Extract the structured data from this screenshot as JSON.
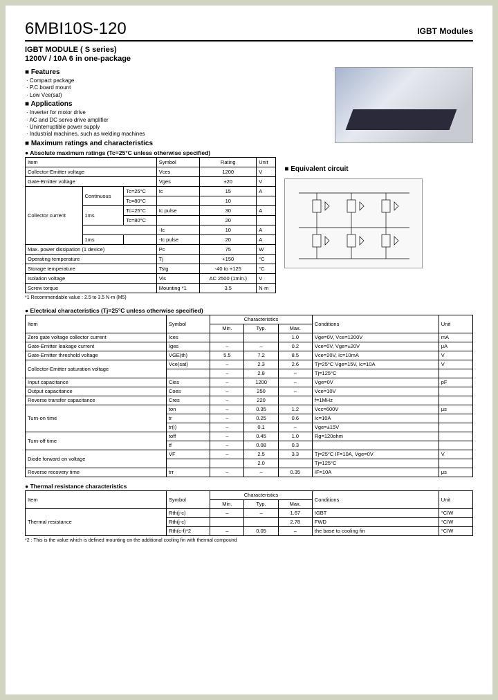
{
  "header": {
    "part_number": "6MBI10S-120",
    "module_type": "IGBT Modules"
  },
  "subtitle": {
    "line1": "IGBT MODULE  ( S series)",
    "line2": "1200V / 10A  6 in one-package"
  },
  "features": {
    "heading": "Features",
    "items": [
      "Compact  package",
      "P.C.board mount",
      "Low Vce(sat)"
    ]
  },
  "applications": {
    "heading": "Applications",
    "items": [
      "Inverter for  motor drive",
      "AC and DC servo drive amplifier",
      "Uninterruptible power supply",
      "Industrial machines, such as welding machines"
    ]
  },
  "max_ratings": {
    "heading": "Maximum ratings and characteristics",
    "sub": "Absolute maximum ratings (Tc=25°C unless otherwise specified)",
    "cols": [
      "Item",
      "Symbol",
      "Rating",
      "Unit"
    ],
    "rows": [
      {
        "item": "Collector-Emitter voltage",
        "symbol": "Vces",
        "rating": "1200",
        "unit": "V"
      },
      {
        "item": "Gate-Emitter voltage",
        "symbol": "Vges",
        "rating": "±20",
        "unit": "V"
      },
      {
        "item": "Collector current",
        "sub1": "Continuous",
        "sub2": "Tc=25°C",
        "symbol": "Ic",
        "rating": "15",
        "unit": "A"
      },
      {
        "item": "",
        "sub1": "",
        "sub2": "Tc=80°C",
        "symbol": "",
        "rating": "10",
        "unit": ""
      },
      {
        "item": "",
        "sub1": "1ms",
        "sub2": "Tc=25°C",
        "symbol": "Ic pulse",
        "rating": "30",
        "unit": "A"
      },
      {
        "item": "",
        "sub1": "",
        "sub2": "Tc=80°C",
        "symbol": "",
        "rating": "20",
        "unit": ""
      },
      {
        "item": "",
        "sub1": "",
        "sub2": "",
        "symbol": "-Ic",
        "rating": "10",
        "unit": "A"
      },
      {
        "item": "",
        "sub1": "1ms",
        "sub2": "",
        "symbol": "-Ic pulse",
        "rating": "20",
        "unit": "A"
      },
      {
        "item": "Max. power dissipation (1 device)",
        "symbol": "Pc",
        "rating": "75",
        "unit": "W"
      },
      {
        "item": "Operating temperature",
        "symbol": "Tj",
        "rating": "+150",
        "unit": "°C"
      },
      {
        "item": "Storage temperature",
        "symbol": "Tstg",
        "rating": "-40 to +125",
        "unit": "°C"
      },
      {
        "item": "Isolation voltage",
        "symbol": "Vis",
        "rating": "AC 2500 (1min.)",
        "unit": "V"
      },
      {
        "item": "Screw torque",
        "symbol": "Mounting *1",
        "rating": "3.5",
        "unit": "N·m"
      }
    ],
    "footnote": "*1  Recommendable value : 2.5 to 3.5 N·m (M5)"
  },
  "equiv": {
    "heading": "Equivalent circuit"
  },
  "elec": {
    "heading": "Electrical characteristics (Tj=25°C unless otherwise specified)",
    "cols": [
      "Item",
      "Symbol",
      "Min.",
      "Typ.",
      "Max.",
      "Conditions",
      "Unit"
    ],
    "char_label": "Characteristics",
    "rows": [
      {
        "i": "Zero gate voltage collector current",
        "s": "Ices",
        "min": "",
        "typ": "",
        "max": "1.0",
        "c": "Vge=0V, Vce=1200V",
        "u": "mA"
      },
      {
        "i": "Gate-Emitter leakage current",
        "s": "Iges",
        "min": "–",
        "typ": "–",
        "max": "0.2",
        "c": "Vce=0V, Vge=±20V",
        "u": "μA"
      },
      {
        "i": "Gate-Emitter threshold voltage",
        "s": "VGE(th)",
        "min": "5.5",
        "typ": "7.2",
        "max": "8.5",
        "c": "Vce=20V, Ic=10mA",
        "u": "V"
      },
      {
        "i": "Collector-Emitter saturation voltage",
        "s": "Vce(sat)",
        "min": "–",
        "typ": "2.3",
        "max": "2.6",
        "c": "Tj=25°C    Vge=15V, Ic=10A",
        "u": "V"
      },
      {
        "i": "",
        "s": "",
        "min": "–",
        "typ": "2.8",
        "max": "–",
        "c": "Tj=125°C",
        "u": ""
      },
      {
        "i": "Input capacitance",
        "s": "Cies",
        "min": "–",
        "typ": "1200",
        "max": "–",
        "c": "Vge=0V",
        "u": "pF"
      },
      {
        "i": "Output capacitance",
        "s": "Coes",
        "min": "–",
        "typ": "250",
        "max": "–",
        "c": "Vce=10V",
        "u": ""
      },
      {
        "i": "Reverse transfer capacitance",
        "s": "Cres",
        "min": "–",
        "typ": "220",
        "max": "",
        "c": "f=1MHz",
        "u": ""
      },
      {
        "i": "Turn-on time",
        "s": "ton",
        "min": "–",
        "typ": "0.35",
        "max": "1.2",
        "c": "Vcc=600V",
        "u": "μs"
      },
      {
        "i": "",
        "s": "tr",
        "min": "–",
        "typ": "0.25",
        "max": "0.6",
        "c": "Ic=10A",
        "u": ""
      },
      {
        "i": "",
        "s": "tr(i)",
        "min": "–",
        "typ": "0.1",
        "max": "–",
        "c": "Vge=±15V",
        "u": ""
      },
      {
        "i": "Turn-off time",
        "s": "toff",
        "min": "–",
        "typ": "0.45",
        "max": "1.0",
        "c": "Rg=120ohm",
        "u": ""
      },
      {
        "i": "",
        "s": "tf",
        "min": "–",
        "typ": "0.08",
        "max": "0.3",
        "c": "",
        "u": ""
      },
      {
        "i": "Diode forward on voltage",
        "s": "VF",
        "min": "–",
        "typ": "2.5",
        "max": "3.3",
        "c": "Tj=25°C    IF=10A, Vge=0V",
        "u": "V"
      },
      {
        "i": "",
        "s": "",
        "min": "",
        "typ": "2.0",
        "max": "",
        "c": "Tj=125°C",
        "u": ""
      },
      {
        "i": "Reverse recovery time",
        "s": "trr",
        "min": "–",
        "typ": "–",
        "max": "0.35",
        "c": "IF=10A",
        "u": "μs"
      }
    ]
  },
  "thermal": {
    "heading": "Thermal resistance characteristics",
    "cols": [
      "Item",
      "Symbol",
      "Min.",
      "Typ.",
      "Max.",
      "Conditions",
      "Unit"
    ],
    "char_label": "Characteristics",
    "rows": [
      {
        "i": "Thermal resistance",
        "s": "Rth(j-c)",
        "min": "–",
        "typ": "–",
        "max": "1.67",
        "c": "IGBT",
        "u": "°C/W"
      },
      {
        "i": "",
        "s": "Rth(j-c)",
        "min": "",
        "typ": "",
        "max": "2.78",
        "c": "FWD",
        "u": "°C/W"
      },
      {
        "i": "",
        "s": "Rth(c-f)*2",
        "min": "–",
        "typ": "0.05",
        "max": "–",
        "c": "the base to cooling fin",
        "u": "°C/W"
      }
    ],
    "footnote": "*2 : This is the value which is defined mounting on the additional cooling fin with thermal compound"
  }
}
